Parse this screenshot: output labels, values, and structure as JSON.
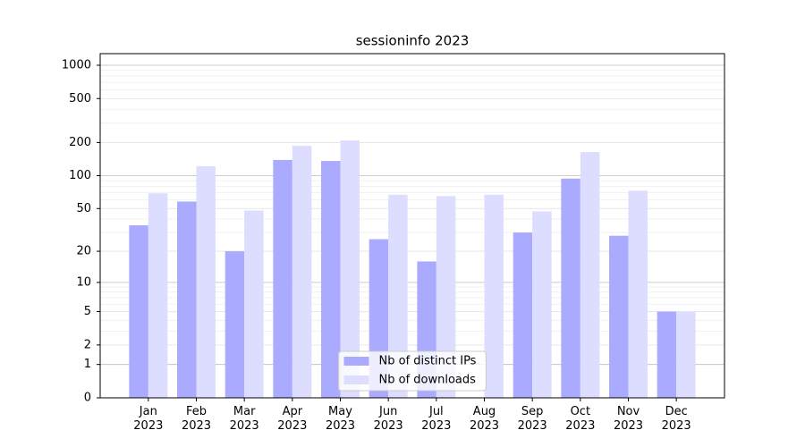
{
  "chart_data": {
    "type": "bar",
    "title": "sessioninfo 2023",
    "categories": [
      "Jan\n2023",
      "Feb\n2023",
      "Mar\n2023",
      "Apr\n2023",
      "May\n2023",
      "Jun\n2023",
      "Jul\n2023",
      "Aug\n2023",
      "Sep\n2023",
      "Oct\n2023",
      "Nov\n2023",
      "Dec\n2023"
    ],
    "series": [
      {
        "name": "Nb of distinct IPs",
        "color": "#aaaaff",
        "values": [
          35,
          58,
          20,
          139,
          136,
          26,
          16,
          0,
          30,
          94,
          28,
          5
        ]
      },
      {
        "name": "Nb of downloads",
        "color": "#ddddff",
        "values": [
          69,
          122,
          48,
          187,
          209,
          67,
          65,
          67,
          47,
          164,
          73,
          5
        ]
      }
    ],
    "yscale": "log1p",
    "ylim": [
      0,
      1273
    ],
    "yticks": [
      0,
      1,
      2,
      5,
      10,
      20,
      50,
      100,
      200,
      500,
      1000
    ],
    "grid": true,
    "legend": "lower center"
  }
}
